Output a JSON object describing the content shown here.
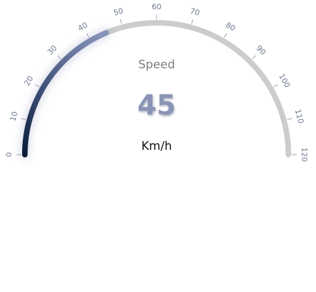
{
  "gauge": {
    "title": "Speed",
    "value": 45,
    "value_text": "45",
    "unit": "Km/h",
    "min": 0,
    "max": 120,
    "ticks": [
      "0",
      "10",
      "20",
      "30",
      "40",
      "50",
      "60",
      "70",
      "80",
      "90",
      "100",
      "110",
      "120"
    ],
    "colors": {
      "track": "#cccccc",
      "fill_start": "#0a1e3a",
      "fill_end": "#8793b8",
      "tick_label": "#6f7890",
      "title": "#7d7d7d",
      "value": "#8a94b6",
      "unit": "#111111",
      "tick_line": "#9aa0b0"
    }
  }
}
